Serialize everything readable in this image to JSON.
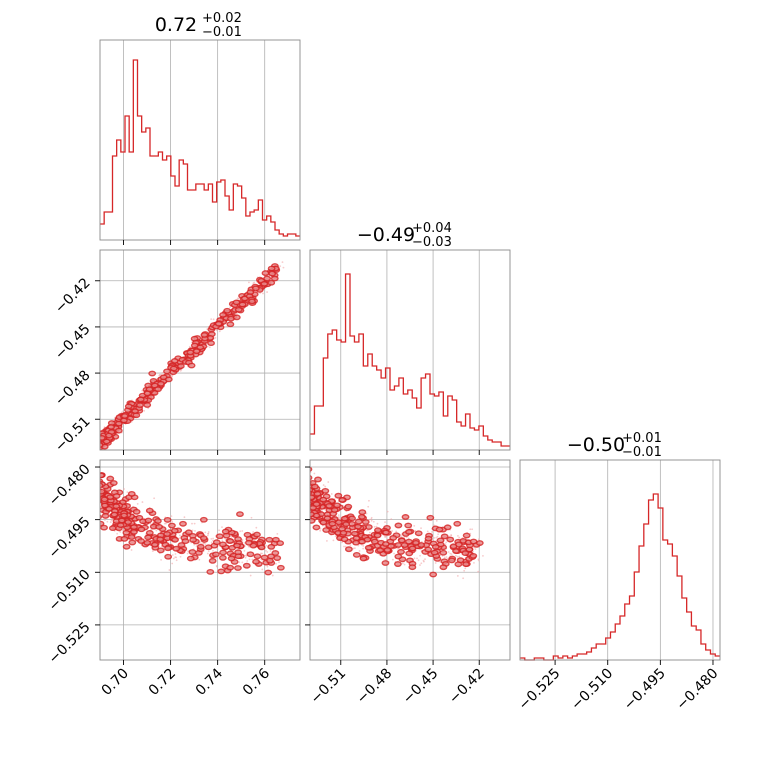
{
  "chart_data": {
    "type": "corner",
    "color": "#d62728",
    "parameters": [
      {
        "title": {
          "value": "0.72",
          "plus": "+0.02",
          "minus": "−0.01"
        },
        "range": [
          0.69,
          0.775
        ],
        "ticks": [
          0.7,
          0.72,
          0.74,
          0.76
        ],
        "tick_labels": [
          "0.70",
          "0.72",
          "0.74",
          "0.76"
        ],
        "histogram": [
          0.08,
          0.14,
          0.14,
          0.42,
          0.5,
          0.44,
          0.62,
          0.44,
          0.9,
          0.62,
          0.54,
          0.56,
          0.42,
          0.42,
          0.44,
          0.4,
          0.42,
          0.32,
          0.27,
          0.4,
          0.38,
          0.25,
          0.25,
          0.28,
          0.28,
          0.25,
          0.28,
          0.19,
          0.29,
          0.3,
          0.22,
          0.15,
          0.28,
          0.27,
          0.21,
          0.12,
          0.14,
          0.15,
          0.2,
          0.1,
          0.12,
          0.09,
          0.05,
          0.03,
          0.02,
          0.03,
          0.03,
          0.02
        ]
      },
      {
        "title": {
          "value": "−0.49",
          "plus": "+0.04",
          "minus": "−0.03"
        },
        "range": [
          -0.53,
          -0.4
        ],
        "ticks": [
          -0.51,
          -0.48,
          -0.45,
          -0.42
        ],
        "tick_labels": [
          "−0.51",
          "−0.48",
          "−0.45",
          "−0.42"
        ],
        "histogram": [
          0.08,
          0.22,
          0.22,
          0.46,
          0.58,
          0.6,
          0.55,
          0.54,
          0.88,
          0.57,
          0.54,
          0.58,
          0.42,
          0.48,
          0.42,
          0.4,
          0.36,
          0.41,
          0.3,
          0.32,
          0.36,
          0.28,
          0.3,
          0.26,
          0.21,
          0.36,
          0.38,
          0.28,
          0.27,
          0.29,
          0.17,
          0.27,
          0.25,
          0.14,
          0.12,
          0.18,
          0.11,
          0.1,
          0.12,
          0.07,
          0.05,
          0.04,
          0.04,
          0.02,
          0.02
        ]
      },
      {
        "title": {
          "value": "−0.50",
          "plus": "+0.01",
          "minus": "−0.01"
        },
        "range": [
          -0.535,
          -0.478
        ],
        "ticks": [
          -0.525,
          -0.51,
          -0.495,
          -0.48
        ],
        "tick_labels": [
          "−0.525",
          "−0.510",
          "−0.495",
          "−0.480"
        ],
        "histogram": [
          0.01,
          0.0,
          0.0,
          0.01,
          0.01,
          0.0,
          0.0,
          0.02,
          0.01,
          0.02,
          0.01,
          0.02,
          0.03,
          0.03,
          0.04,
          0.06,
          0.08,
          0.08,
          0.11,
          0.14,
          0.18,
          0.22,
          0.28,
          0.32,
          0.44,
          0.57,
          0.68,
          0.8,
          0.83,
          0.76,
          0.6,
          0.58,
          0.52,
          0.42,
          0.31,
          0.24,
          0.17,
          0.15,
          0.08,
          0.05,
          0.03,
          0.02
        ]
      }
    ],
    "grid": true
  }
}
